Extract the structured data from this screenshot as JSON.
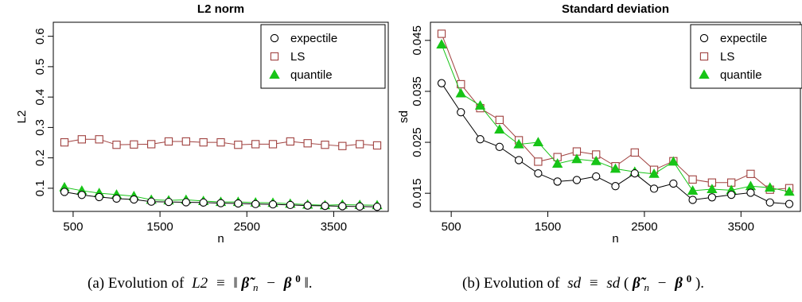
{
  "chart_data": [
    {
      "type": "line",
      "title": "L2 norm",
      "xlabel": "n",
      "ylabel": "L2",
      "xlim": [
        400,
        4000
      ],
      "ylim": [
        0.05,
        0.62
      ],
      "xticks": [
        "500",
        "1500",
        "2500",
        "3500"
      ],
      "yticks": [
        "0.1",
        "0.2",
        "0.3",
        "0.4",
        "0.5",
        "0.6"
      ],
      "legend_position": "top-right",
      "grid": false,
      "x": [
        400,
        600,
        800,
        1000,
        1200,
        1400,
        1600,
        1800,
        2000,
        2200,
        2400,
        2600,
        2800,
        3000,
        3200,
        3400,
        3600,
        3800,
        4000
      ],
      "series": [
        {
          "name": "expectile",
          "marker": "circle",
          "color": "#000000",
          "values": [
            0.088,
            0.078,
            0.071,
            0.066,
            0.063,
            0.056,
            0.055,
            0.054,
            0.053,
            0.051,
            0.05,
            0.048,
            0.047,
            0.045,
            0.043,
            0.042,
            0.041,
            0.04,
            0.039
          ]
        },
        {
          "name": "LS",
          "marker": "square",
          "color": "#a0413f",
          "values": [
            0.251,
            0.261,
            0.261,
            0.243,
            0.244,
            0.245,
            0.254,
            0.254,
            0.251,
            0.251,
            0.243,
            0.245,
            0.245,
            0.254,
            0.248,
            0.243,
            0.239,
            0.245,
            0.241
          ]
        },
        {
          "name": "quantile",
          "marker": "triangle",
          "color": "#17c417",
          "values": [
            0.103,
            0.092,
            0.084,
            0.079,
            0.074,
            0.062,
            0.06,
            0.062,
            0.058,
            0.055,
            0.055,
            0.053,
            0.052,
            0.049,
            0.046,
            0.044,
            0.046,
            0.045,
            0.044
          ]
        }
      ]
    },
    {
      "type": "line",
      "title": "Standard deviation",
      "xlabel": "n",
      "ylabel": "sd",
      "xlim": [
        400,
        4000
      ],
      "ylim": [
        0.013,
        0.047
      ],
      "xticks": [
        "500",
        "1500",
        "2500",
        "3500"
      ],
      "yticks": [
        "0.015",
        "0.025",
        "0.035",
        "0.045"
      ],
      "legend_position": "top-right",
      "grid": false,
      "x": [
        400,
        600,
        800,
        1000,
        1200,
        1400,
        1600,
        1800,
        2000,
        2200,
        2400,
        2600,
        2800,
        3000,
        3200,
        3400,
        3600,
        3800,
        4000
      ],
      "series": [
        {
          "name": "expectile",
          "marker": "circle",
          "color": "#000000",
          "values": [
            0.0366,
            0.0309,
            0.0256,
            0.0241,
            0.0215,
            0.0189,
            0.0173,
            0.0176,
            0.0183,
            0.0164,
            0.0189,
            0.0159,
            0.0169,
            0.0137,
            0.0142,
            0.0147,
            0.0151,
            0.0132,
            0.0129
          ]
        },
        {
          "name": "LS",
          "marker": "square",
          "color": "#a0413f",
          "values": [
            0.0463,
            0.0364,
            0.0317,
            0.0294,
            0.0254,
            0.0212,
            0.0221,
            0.0232,
            0.0226,
            0.0203,
            0.023,
            0.0196,
            0.0213,
            0.0177,
            0.0171,
            0.0171,
            0.0188,
            0.0157,
            0.016
          ]
        },
        {
          "name": "quantile",
          "marker": "triangle",
          "color": "#17c417",
          "values": [
            0.0442,
            0.0346,
            0.0322,
            0.0275,
            0.0246,
            0.025,
            0.0208,
            0.0217,
            0.0213,
            0.0198,
            0.0192,
            0.0188,
            0.0212,
            0.0155,
            0.0158,
            0.0156,
            0.0164,
            0.0161,
            0.0153
          ]
        }
      ]
    }
  ],
  "captions": {
    "a": {
      "prefix": "(a) Evolution of",
      "lhs": "L2",
      "equiv": "≡"
    },
    "b": {
      "prefix": "(b) Evolution of",
      "lhs": "sd",
      "equiv": "≡",
      "fn": "sd"
    }
  }
}
